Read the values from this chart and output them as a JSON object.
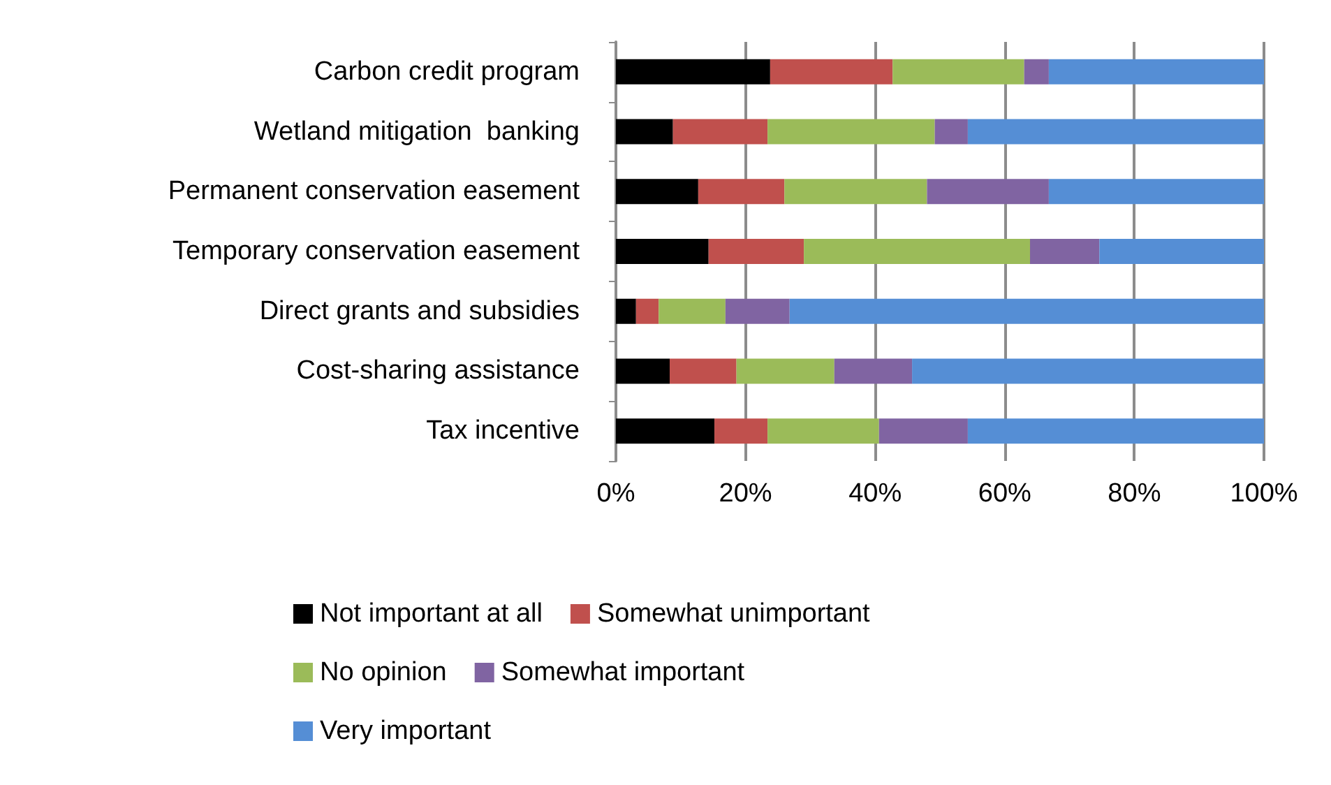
{
  "chart_data": {
    "type": "bar",
    "orientation": "horizontal",
    "stacked": true,
    "categories": [
      "Carbon credit program",
      "Wetland mitigation  banking",
      "Permanent conservation easement",
      "Temporary conservation easement",
      "Direct grants and subsidies",
      "Cost-sharing assistance",
      "Tax incentive"
    ],
    "series": [
      {
        "name": "Not important at all",
        "color": "#000000",
        "values": [
          23.8,
          8.8,
          12.7,
          14.3,
          3.1,
          8.3,
          15.2
        ]
      },
      {
        "name": "Somewhat unimportant",
        "color": "#c0504d",
        "values": [
          18.9,
          14.6,
          13.3,
          14.7,
          3.5,
          10.3,
          8.2
        ]
      },
      {
        "name": "No opinion",
        "color": "#9bbb59",
        "values": [
          20.3,
          25.8,
          22.0,
          34.9,
          10.3,
          15.1,
          17.2
        ]
      },
      {
        "name": "Somewhat important",
        "color": "#8064a2",
        "values": [
          3.8,
          5.1,
          18.8,
          10.7,
          9.9,
          12.0,
          13.7
        ]
      },
      {
        "name": "Very important",
        "color": "#558ed5",
        "values": [
          33.2,
          45.7,
          33.2,
          25.4,
          73.2,
          54.3,
          45.7
        ]
      }
    ],
    "xlim": [
      0,
      100
    ],
    "xticks": [
      {
        "value": 0,
        "label": "0%"
      },
      {
        "value": 20,
        "label": "20%"
      },
      {
        "value": 40,
        "label": "40%"
      },
      {
        "value": 60,
        "label": "60%"
      },
      {
        "value": 80,
        "label": "80%"
      },
      {
        "value": 100,
        "label": "100%"
      }
    ],
    "grid": "x",
    "legend": "bottom"
  }
}
